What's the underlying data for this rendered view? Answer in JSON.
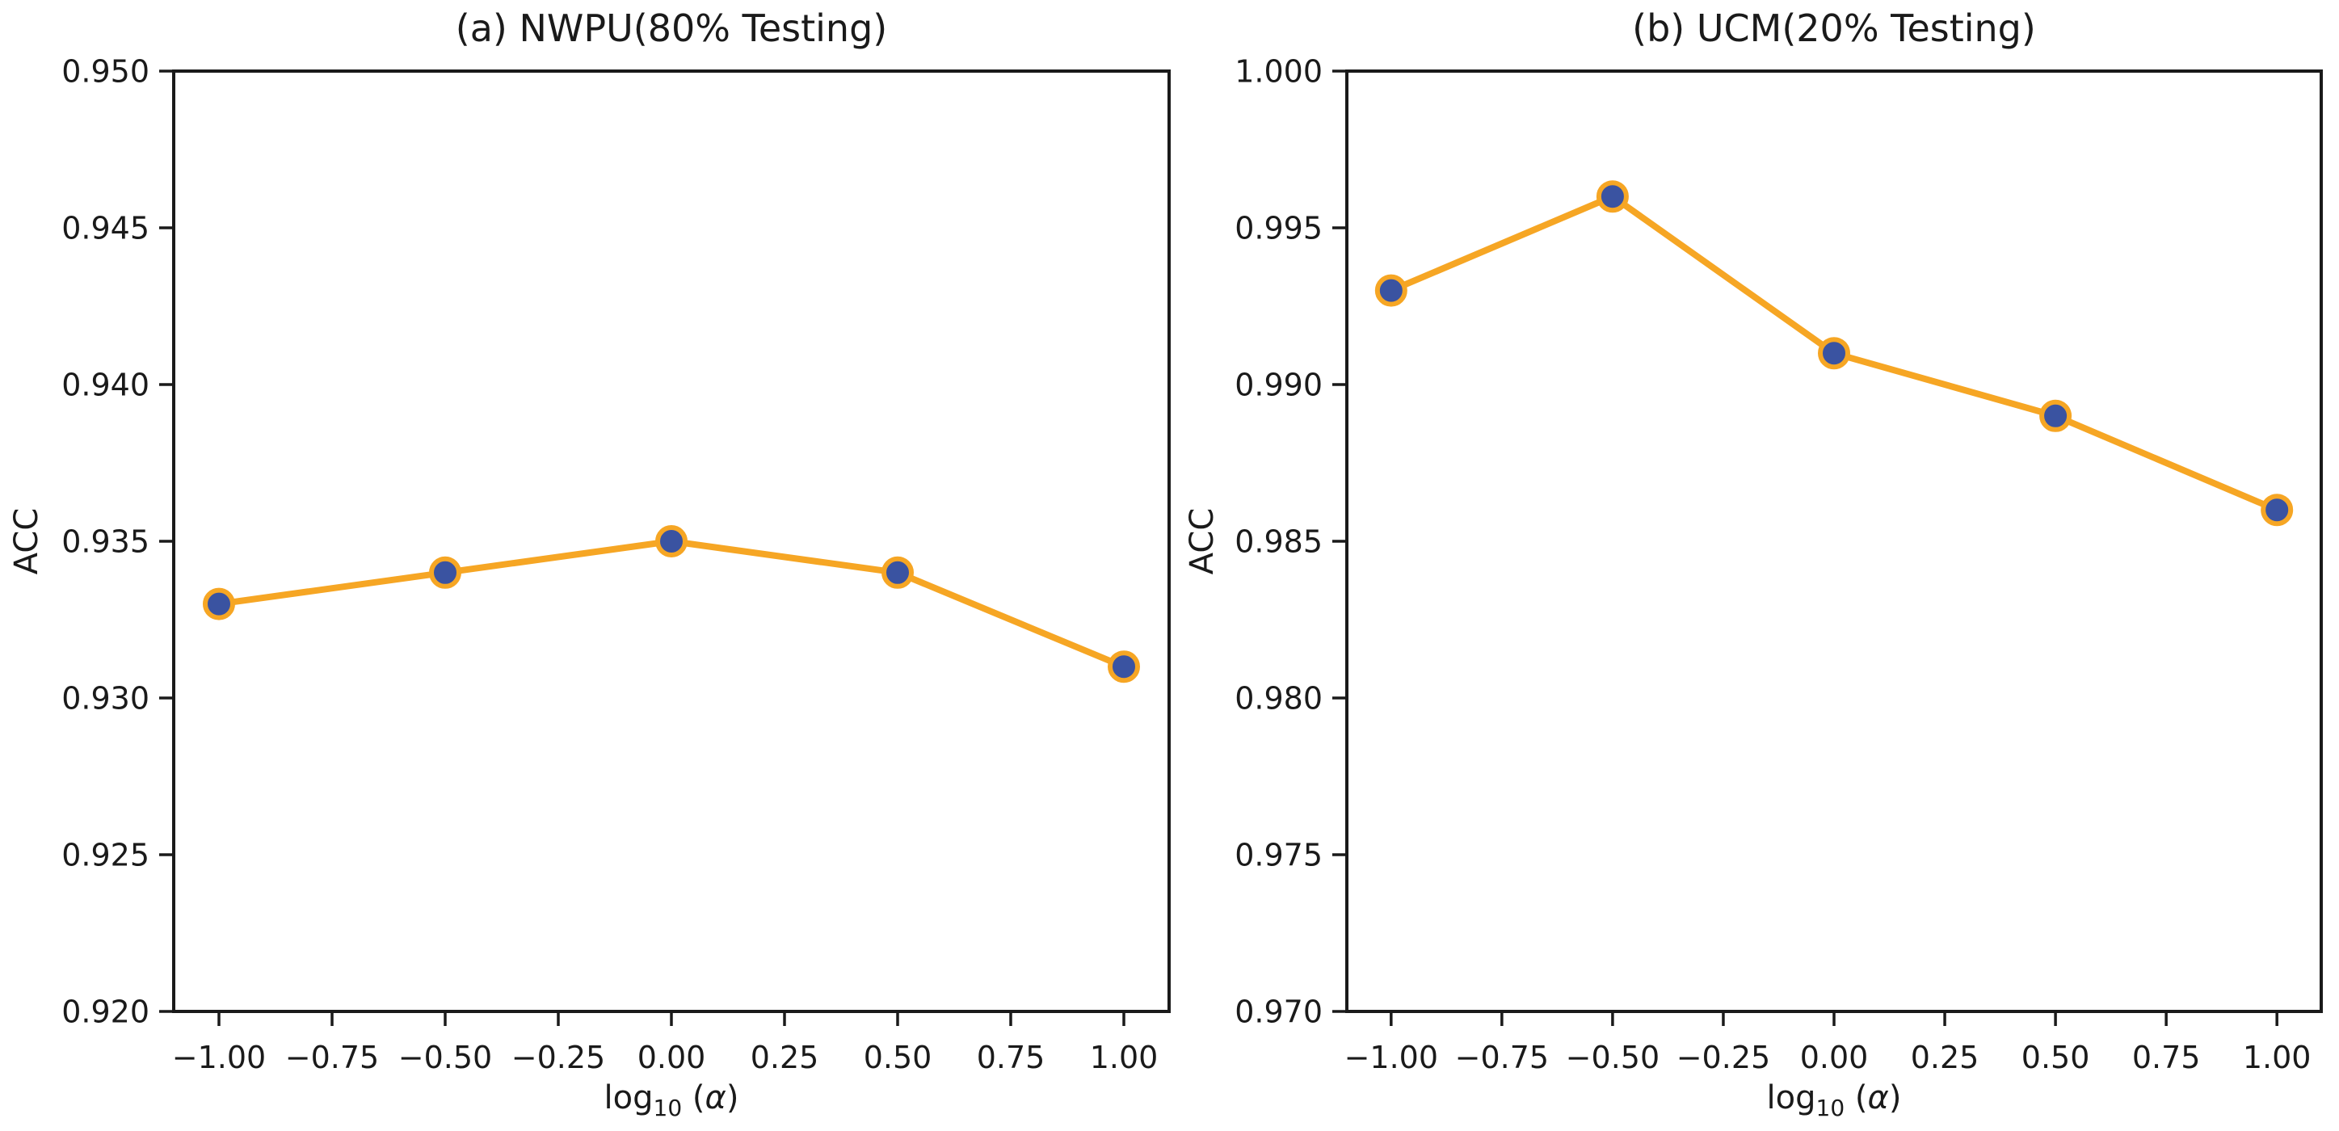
{
  "figure": {
    "background": "#ffffff",
    "colors": {
      "line": "#F6A624",
      "marker_face": "#3A53A1",
      "marker_edge": "#F6A624",
      "axis": "#1a1a1a",
      "text": "#1a1a1a"
    }
  },
  "chart_data": [
    {
      "type": "line",
      "title": "(a) NWPU(80% Testing)",
      "ylabel": "ACC",
      "xlabel": {
        "base": "log",
        "sub": "10",
        "open": " (",
        "alpha": "α",
        "close": ")"
      },
      "x": [
        -1.0,
        -0.5,
        0.0,
        0.5,
        1.0
      ],
      "y": [
        0.933,
        0.934,
        0.935,
        0.934,
        0.931
      ],
      "xlim": [
        -1.1,
        1.1
      ],
      "ylim": [
        0.92,
        0.95
      ],
      "xticks": [
        -1.0,
        -0.75,
        -0.5,
        -0.25,
        0.0,
        0.25,
        0.5,
        0.75,
        1.0
      ],
      "xtick_labels": [
        "−1.00",
        "−0.75",
        "−0.50",
        "−0.25",
        "0.00",
        "0.25",
        "0.50",
        "0.75",
        "1.00"
      ],
      "yticks": [
        0.92,
        0.925,
        0.93,
        0.935,
        0.94,
        0.945,
        0.95
      ],
      "ytick_labels": [
        "0.920",
        "0.925",
        "0.930",
        "0.935",
        "0.940",
        "0.945",
        "0.950"
      ],
      "grid": false,
      "legend": null
    },
    {
      "type": "line",
      "title": "(b) UCM(20% Testing)",
      "ylabel": "ACC",
      "xlabel": {
        "base": "log",
        "sub": "10",
        "open": " (",
        "alpha": "α",
        "close": ")"
      },
      "x": [
        -1.0,
        -0.5,
        0.0,
        0.5,
        1.0
      ],
      "y": [
        0.993,
        0.996,
        0.991,
        0.989,
        0.986
      ],
      "xlim": [
        -1.1,
        1.1
      ],
      "ylim": [
        0.97,
        1.0
      ],
      "xticks": [
        -1.0,
        -0.75,
        -0.5,
        -0.25,
        0.0,
        0.25,
        0.5,
        0.75,
        1.0
      ],
      "xtick_labels": [
        "−1.00",
        "−0.75",
        "−0.50",
        "−0.25",
        "0.00",
        "0.25",
        "0.50",
        "0.75",
        "1.00"
      ],
      "yticks": [
        0.97,
        0.975,
        0.98,
        0.985,
        0.99,
        0.995,
        1.0
      ],
      "ytick_labels": [
        "0.970",
        "0.975",
        "0.980",
        "0.985",
        "0.990",
        "0.995",
        "1.000"
      ],
      "grid": false,
      "legend": null
    }
  ]
}
